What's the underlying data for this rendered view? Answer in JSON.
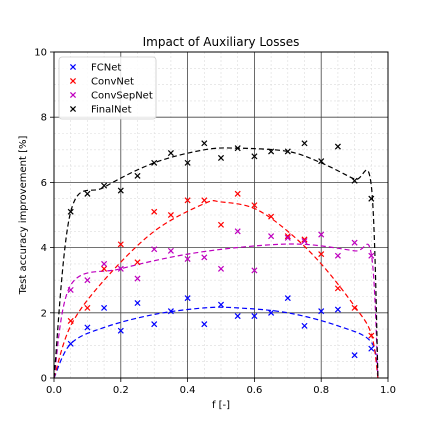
{
  "chart_data": {
    "type": "scatter",
    "title": "Impact of Auxiliary Losses",
    "xlabel": "f [-]",
    "ylabel": "Test accuracy improvement [%]",
    "xlim": [
      0.0,
      1.0
    ],
    "ylim": [
      0,
      10
    ],
    "xticks": [
      "0.0",
      "0.2",
      "0.4",
      "0.6",
      "0.8",
      "1.0"
    ],
    "yticks": [
      "0",
      "2",
      "4",
      "6",
      "8",
      "10"
    ],
    "xtick_values": [
      0.0,
      0.2,
      0.4,
      0.6,
      0.8,
      1.0
    ],
    "ytick_values": [
      0,
      2,
      4,
      6,
      8,
      10
    ],
    "grid": "major solid, minor dashed",
    "legend_position": "top-left",
    "series": [
      {
        "name": "FCNet",
        "color": "#0000ff",
        "marker": "x",
        "x": [
          0.05,
          0.1,
          0.15,
          0.2,
          0.25,
          0.3,
          0.35,
          0.4,
          0.45,
          0.5,
          0.55,
          0.6,
          0.65,
          0.7,
          0.75,
          0.8,
          0.85,
          0.9,
          0.95
        ],
        "y": [
          1.05,
          1.55,
          2.15,
          1.45,
          2.3,
          1.65,
          2.05,
          2.45,
          1.65,
          2.25,
          1.9,
          1.9,
          2.0,
          2.45,
          1.6,
          2.05,
          2.1,
          0.7,
          0.9
        ],
        "fit": [
          [
            0.0,
            0.0
          ],
          [
            0.05,
            1.05
          ],
          [
            0.15,
            1.55
          ],
          [
            0.3,
            1.95
          ],
          [
            0.45,
            2.15
          ],
          [
            0.55,
            2.15
          ],
          [
            0.7,
            2.0
          ],
          [
            0.85,
            1.6
          ],
          [
            0.95,
            1.1
          ],
          [
            0.97,
            0.0
          ]
        ]
      },
      {
        "name": "ConvNet",
        "color": "#ff0000",
        "marker": "x",
        "x": [
          0.05,
          0.1,
          0.15,
          0.2,
          0.25,
          0.3,
          0.35,
          0.4,
          0.45,
          0.5,
          0.55,
          0.6,
          0.65,
          0.7,
          0.75,
          0.8,
          0.85,
          0.9,
          0.95
        ],
        "y": [
          1.75,
          2.15,
          3.35,
          4.1,
          3.55,
          5.1,
          5.0,
          5.45,
          5.45,
          4.7,
          5.65,
          5.3,
          4.95,
          4.35,
          4.25,
          3.8,
          2.75,
          2.15,
          1.3
        ],
        "fit": [
          [
            0.0,
            0.0
          ],
          [
            0.05,
            1.6
          ],
          [
            0.15,
            3.0
          ],
          [
            0.3,
            4.5
          ],
          [
            0.45,
            5.35
          ],
          [
            0.5,
            5.4
          ],
          [
            0.6,
            5.2
          ],
          [
            0.7,
            4.5
          ],
          [
            0.8,
            3.5
          ],
          [
            0.9,
            2.2
          ],
          [
            0.95,
            1.35
          ],
          [
            0.97,
            0.0
          ]
        ]
      },
      {
        "name": "ConvSepNet",
        "color": "#bf00bf",
        "marker": "x",
        "x": [
          0.05,
          0.1,
          0.15,
          0.2,
          0.25,
          0.3,
          0.35,
          0.4,
          0.45,
          0.5,
          0.55,
          0.6,
          0.65,
          0.7,
          0.75,
          0.8,
          0.85,
          0.9,
          0.95
        ],
        "y": [
          2.7,
          3.0,
          3.5,
          3.35,
          3.05,
          3.95,
          3.9,
          3.65,
          3.7,
          3.35,
          4.5,
          3.3,
          4.35,
          4.3,
          4.2,
          4.4,
          3.75,
          4.15,
          3.75
        ],
        "fit": [
          [
            0.0,
            0.0
          ],
          [
            0.05,
            2.85
          ],
          [
            0.2,
            3.35
          ],
          [
            0.4,
            3.8
          ],
          [
            0.6,
            4.05
          ],
          [
            0.75,
            4.1
          ],
          [
            0.9,
            3.9
          ],
          [
            0.95,
            3.8
          ],
          [
            0.97,
            0.0
          ]
        ]
      },
      {
        "name": "FinalNet",
        "color": "#000000",
        "marker": "x",
        "x": [
          0.05,
          0.1,
          0.15,
          0.2,
          0.25,
          0.3,
          0.35,
          0.4,
          0.45,
          0.5,
          0.55,
          0.6,
          0.65,
          0.7,
          0.75,
          0.8,
          0.85,
          0.9,
          0.95
        ],
        "y": [
          5.1,
          5.65,
          5.9,
          5.75,
          6.2,
          6.6,
          6.9,
          6.6,
          7.2,
          6.75,
          7.05,
          6.8,
          6.95,
          6.95,
          7.2,
          6.65,
          7.1,
          6.05,
          5.5
        ],
        "fit": [
          [
            0.0,
            0.0
          ],
          [
            0.05,
            5.1
          ],
          [
            0.15,
            5.85
          ],
          [
            0.3,
            6.6
          ],
          [
            0.45,
            7.0
          ],
          [
            0.55,
            7.05
          ],
          [
            0.7,
            6.95
          ],
          [
            0.8,
            6.6
          ],
          [
            0.9,
            6.1
          ],
          [
            0.95,
            5.9
          ],
          [
            0.97,
            0.0
          ]
        ]
      }
    ]
  }
}
